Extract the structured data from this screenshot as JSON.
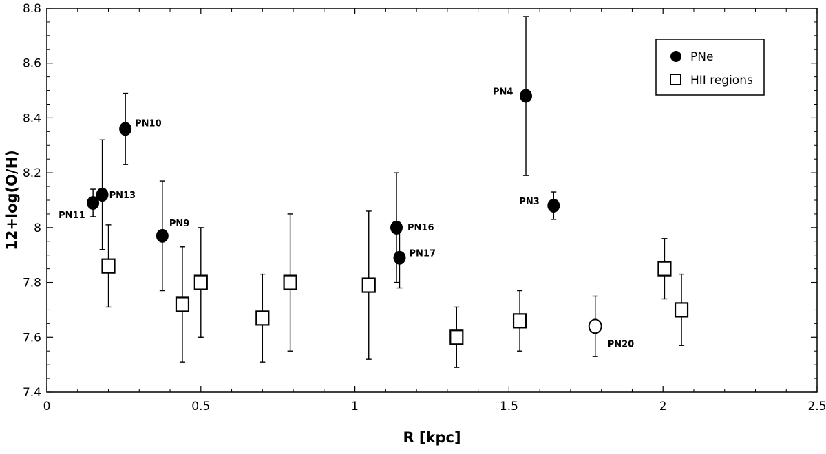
{
  "chart_data": {
    "type": "scatter",
    "xlabel": "R [kpc]",
    "ylabel": "12+log(O/H)",
    "xlim": [
      0,
      2.5
    ],
    "ylim": [
      7.4,
      8.8
    ],
    "grid": false,
    "legend_position": "top-right",
    "x_ticks": [
      "0",
      "0.5",
      "1",
      "1.5",
      "2",
      "2.5"
    ],
    "y_ticks": [
      "7.4",
      "7.6",
      "7.8",
      "8",
      "8.2",
      "8.4",
      "8.6",
      "8.8"
    ],
    "series": [
      {
        "name": "PNe",
        "marker": "filled-circle",
        "points": [
          {
            "x": 0.15,
            "y": 8.09,
            "ylow": 8.04,
            "yhigh": 8.14,
            "label": "PN11"
          },
          {
            "x": 0.18,
            "y": 8.12,
            "ylow": 7.92,
            "yhigh": 8.32,
            "label": "PN13"
          },
          {
            "x": 0.255,
            "y": 8.36,
            "ylow": 8.23,
            "yhigh": 8.49,
            "label": "PN10"
          },
          {
            "x": 0.375,
            "y": 7.97,
            "ylow": 7.77,
            "yhigh": 8.17,
            "label": "PN9"
          },
          {
            "x": 1.135,
            "y": 8.0,
            "ylow": 7.8,
            "yhigh": 8.2,
            "label": "PN16"
          },
          {
            "x": 1.145,
            "y": 7.89,
            "ylow": 7.78,
            "yhigh": 8.0,
            "label": "PN17"
          },
          {
            "x": 1.555,
            "y": 8.48,
            "ylow": 8.19,
            "yhigh": 8.77,
            "label": "PN4"
          },
          {
            "x": 1.645,
            "y": 8.08,
            "ylow": 8.03,
            "yhigh": 8.13,
            "label": "PN3"
          }
        ]
      },
      {
        "name": "HII regions",
        "marker": "open-square",
        "points": [
          {
            "x": 0.2,
            "y": 7.86,
            "ylow": 7.71,
            "yhigh": 8.01
          },
          {
            "x": 0.44,
            "y": 7.72,
            "ylow": 7.51,
            "yhigh": 7.93
          },
          {
            "x": 0.5,
            "y": 7.8,
            "ylow": 7.6,
            "yhigh": 8.0
          },
          {
            "x": 0.7,
            "y": 7.67,
            "ylow": 7.51,
            "yhigh": 7.83
          },
          {
            "x": 0.79,
            "y": 7.8,
            "ylow": 7.55,
            "yhigh": 8.05
          },
          {
            "x": 1.045,
            "y": 7.79,
            "ylow": 7.52,
            "yhigh": 8.06
          },
          {
            "x": 1.33,
            "y": 7.6,
            "ylow": 7.49,
            "yhigh": 7.71
          },
          {
            "x": 1.535,
            "y": 7.66,
            "ylow": 7.55,
            "yhigh": 7.77
          },
          {
            "x": 2.005,
            "y": 7.85,
            "ylow": 7.74,
            "yhigh": 7.96
          },
          {
            "x": 2.06,
            "y": 7.7,
            "ylow": 7.57,
            "yhigh": 7.83
          }
        ]
      },
      {
        "marker": "open-circle",
        "points": [
          {
            "x": 1.78,
            "y": 7.64,
            "ylow": 7.53,
            "yhigh": 7.75,
            "label": "PN20"
          }
        ]
      }
    ]
  }
}
